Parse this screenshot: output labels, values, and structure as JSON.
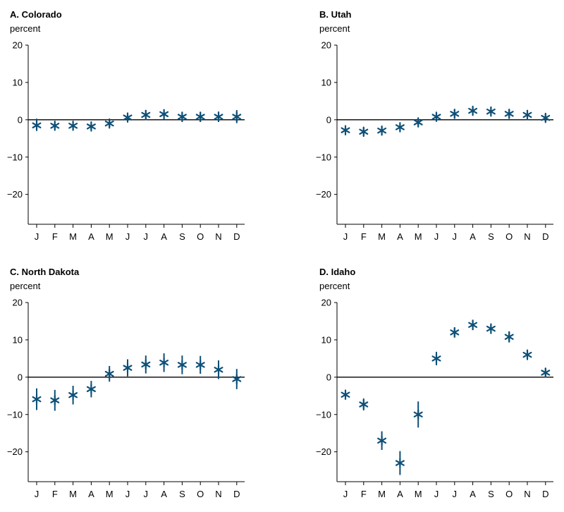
{
  "colors": {
    "marker": "#0d4f77",
    "axis": "#000000"
  },
  "chart_data": [
    {
      "type": "scatter",
      "title": "A. Colorado",
      "ylabel": "percent",
      "ylim": [
        -28,
        20
      ],
      "yticks": [
        20,
        10,
        0,
        -10,
        -20
      ],
      "ytick_labels": [
        "20",
        "10",
        "0",
        "−10",
        "−20"
      ],
      "categories": [
        "J",
        "F",
        "M",
        "A",
        "M",
        "J",
        "J",
        "A",
        "S",
        "O",
        "N",
        "D"
      ],
      "values": [
        -1.5,
        -1.6,
        -1.6,
        -1.8,
        -1.0,
        0.6,
        1.3,
        1.5,
        0.8,
        0.8,
        0.8,
        0.8
      ],
      "lower": [
        -3.0,
        -2.6,
        -2.6,
        -2.7,
        -2.0,
        -0.6,
        -0.1,
        0.1,
        -0.6,
        -0.6,
        -0.6,
        -0.9
      ],
      "upper": [
        0.3,
        -0.6,
        -0.6,
        -0.8,
        0.0,
        1.8,
        2.6,
        2.8,
        2.1,
        2.1,
        2.2,
        2.6
      ]
    },
    {
      "type": "scatter",
      "title": "B. Utah",
      "ylabel": "percent",
      "ylim": [
        -28,
        20
      ],
      "yticks": [
        20,
        10,
        0,
        -10,
        -20
      ],
      "ytick_labels": [
        "20",
        "10",
        "0",
        "−10",
        "−20"
      ],
      "categories": [
        "J",
        "F",
        "M",
        "A",
        "M",
        "J",
        "J",
        "A",
        "S",
        "O",
        "N",
        "D"
      ],
      "values": [
        -2.8,
        -3.2,
        -2.9,
        -2.0,
        -0.7,
        0.8,
        1.6,
        2.4,
        2.2,
        1.6,
        1.3,
        0.5
      ],
      "lower": [
        -3.9,
        -4.3,
        -4.0,
        -3.1,
        -1.7,
        -0.3,
        0.5,
        1.2,
        1.0,
        0.4,
        0.1,
        -0.6
      ],
      "upper": [
        -1.7,
        -2.1,
        -1.8,
        -0.9,
        0.3,
        1.9,
        2.7,
        3.6,
        3.4,
        2.8,
        2.5,
        1.6
      ]
    },
    {
      "type": "scatter",
      "title": "C. North Dakota",
      "ylabel": "percent",
      "ylim": [
        -28,
        20
      ],
      "yticks": [
        20,
        10,
        0,
        -10,
        -20
      ],
      "ytick_labels": [
        "20",
        "10",
        "0",
        "−10",
        "−20"
      ],
      "categories": [
        "J",
        "F",
        "M",
        "A",
        "M",
        "J",
        "J",
        "A",
        "S",
        "O",
        "N",
        "D"
      ],
      "values": [
        -5.9,
        -6.2,
        -4.8,
        -3.2,
        0.9,
        2.5,
        3.4,
        3.9,
        3.3,
        3.3,
        2.0,
        -0.5
      ],
      "lower": [
        -8.8,
        -9.0,
        -7.3,
        -5.4,
        -1.2,
        0.2,
        1.0,
        1.4,
        0.8,
        0.9,
        -0.5,
        -3.2
      ],
      "upper": [
        -3.0,
        -3.4,
        -2.3,
        -1.0,
        3.0,
        4.8,
        5.8,
        6.4,
        5.8,
        5.7,
        4.5,
        2.2
      ]
    },
    {
      "type": "scatter",
      "title": "D. Idaho",
      "ylabel": "percent",
      "ylim": [
        -28,
        20
      ],
      "yticks": [
        20,
        10,
        0,
        -10,
        -20
      ],
      "ytick_labels": [
        "20",
        "10",
        "0",
        "−10",
        "−20"
      ],
      "categories": [
        "J",
        "F",
        "M",
        "A",
        "M",
        "J",
        "J",
        "A",
        "S",
        "O",
        "N",
        "D"
      ],
      "values": [
        -4.7,
        -7.3,
        -17.0,
        -23.0,
        -10.0,
        5.0,
        12.0,
        14.0,
        13.0,
        10.8,
        6.0,
        1.2
      ],
      "lower": [
        -5.8,
        -8.9,
        -19.5,
        -26.2,
        -13.5,
        3.2,
        10.6,
        12.6,
        11.6,
        9.3,
        4.6,
        0.0
      ],
      "upper": [
        -3.6,
        -5.7,
        -14.5,
        -19.8,
        -6.5,
        6.8,
        13.4,
        15.4,
        14.4,
        12.3,
        7.4,
        2.4
      ]
    }
  ]
}
